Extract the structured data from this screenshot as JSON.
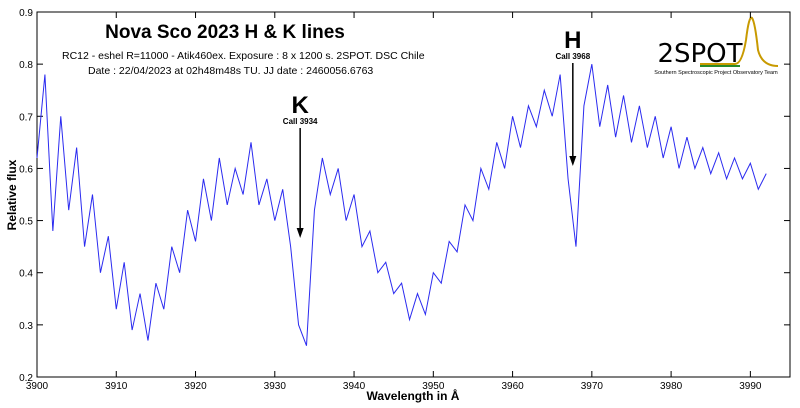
{
  "chart_data": {
    "type": "line",
    "title": "Nova Sco 2023 H & K lines",
    "subtitle": [
      "RC12 - eshel R=11000 - Atik460ex. Exposure : 8 x 1200 s. 2SPOT. DSC Chile",
      "Date : 22/04/2023 at 02h48m48s TU. JJ date : 2460056.6763"
    ],
    "x_label": "Wavelength in Å",
    "y_label": "Relative flux",
    "logo": {
      "text": "2SPOT",
      "caption": "Southern Spectroscopic Project Observatory Team"
    },
    "annotations": [
      {
        "label": "K",
        "note": "Call 3934",
        "x": 3933.2
      },
      {
        "label": "H",
        "note": "Call 3968",
        "x": 3967.6
      }
    ],
    "xlim": [
      3900,
      3995
    ],
    "ylim": [
      0.2,
      0.9
    ],
    "xticks": [
      3900,
      3910,
      3920,
      3930,
      3940,
      3950,
      3960,
      3970,
      3980,
      3990
    ],
    "yticks": [
      0.2,
      0.3,
      0.4,
      0.5,
      0.6,
      0.7,
      0.8,
      0.9
    ],
    "x": [
      3900,
      3901,
      3902,
      3903,
      3904,
      3905,
      3906,
      3907,
      3908,
      3909,
      3910,
      3911,
      3912,
      3913,
      3914,
      3915,
      3916,
      3917,
      3918,
      3919,
      3920,
      3921,
      3922,
      3923,
      3924,
      3925,
      3926,
      3927,
      3928,
      3929,
      3930,
      3931,
      3932,
      3933,
      3934,
      3935,
      3936,
      3937,
      3938,
      3939,
      3940,
      3941,
      3942,
      3943,
      3944,
      3945,
      3946,
      3947,
      3948,
      3949,
      3950,
      3951,
      3952,
      3953,
      3954,
      3955,
      3956,
      3957,
      3958,
      3959,
      3960,
      3961,
      3962,
      3963,
      3964,
      3965,
      3966,
      3967,
      3968,
      3969,
      3970,
      3971,
      3972,
      3973,
      3974,
      3975,
      3976,
      3977,
      3978,
      3979,
      3980,
      3981,
      3982,
      3983,
      3984,
      3985,
      3986,
      3987,
      3988,
      3989,
      3990,
      3991,
      3992
    ],
    "series": [
      {
        "color": "#2b2bf0",
        "values": [
          0.62,
          0.78,
          0.48,
          0.7,
          0.52,
          0.64,
          0.45,
          0.55,
          0.4,
          0.47,
          0.33,
          0.42,
          0.29,
          0.36,
          0.27,
          0.38,
          0.33,
          0.45,
          0.4,
          0.52,
          0.46,
          0.58,
          0.5,
          0.62,
          0.53,
          0.6,
          0.55,
          0.65,
          0.53,
          0.58,
          0.5,
          0.56,
          0.45,
          0.3,
          0.26,
          0.52,
          0.62,
          0.55,
          0.6,
          0.5,
          0.55,
          0.45,
          0.48,
          0.4,
          0.42,
          0.36,
          0.38,
          0.31,
          0.36,
          0.32,
          0.4,
          0.38,
          0.46,
          0.44,
          0.53,
          0.5,
          0.6,
          0.56,
          0.65,
          0.6,
          0.7,
          0.64,
          0.72,
          0.68,
          0.75,
          0.7,
          0.78,
          0.58,
          0.45,
          0.72,
          0.8,
          0.68,
          0.76,
          0.66,
          0.74,
          0.65,
          0.72,
          0.64,
          0.7,
          0.62,
          0.68,
          0.6,
          0.66,
          0.6,
          0.64,
          0.59,
          0.63,
          0.58,
          0.62,
          0.58,
          0.61,
          0.56,
          0.59
        ]
      }
    ]
  }
}
